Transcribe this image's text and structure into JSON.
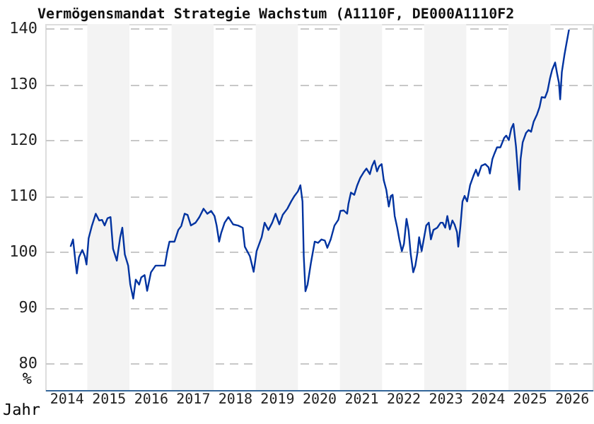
{
  "chart_data": {
    "type": "line",
    "title": "Vermögensmandat Strategie Wachstum (A1110F, DE000A1110F2",
    "xlabel": "Jahr",
    "ylabel": "%",
    "x": [
      2014.6,
      2014.66,
      2014.72,
      2014.75,
      2014.8,
      2014.88,
      2014.94,
      2014.98,
      2015.03,
      2015.11,
      2015.2,
      2015.28,
      2015.35,
      2015.41,
      2015.48,
      2015.55,
      2015.61,
      2015.7,
      2015.78,
      2015.83,
      2015.89,
      2015.97,
      2016.02,
      2016.09,
      2016.15,
      2016.23,
      2016.28,
      2016.36,
      2016.42,
      2016.51,
      2016.62,
      2016.73,
      2016.84,
      2016.9,
      2016.95,
      2017.07,
      2017.16,
      2017.23,
      2017.31,
      2017.38,
      2017.46,
      2017.57,
      2017.66,
      2017.76,
      2017.85,
      2017.94,
      2018.02,
      2018.07,
      2018.13,
      2018.18,
      2018.26,
      2018.35,
      2018.46,
      2018.58,
      2018.69,
      2018.74,
      2018.86,
      2018.95,
      2019.02,
      2019.14,
      2019.21,
      2019.3,
      2019.39,
      2019.47,
      2019.56,
      2019.64,
      2019.75,
      2019.84,
      2019.92,
      2020.0,
      2020.06,
      2020.11,
      2020.14,
      2020.18,
      2020.23,
      2020.31,
      2020.4,
      2020.48,
      2020.56,
      2020.64,
      2020.7,
      2020.78,
      2020.87,
      2020.96,
      2021.01,
      2021.09,
      2021.17,
      2021.2,
      2021.26,
      2021.34,
      2021.41,
      2021.48,
      2021.56,
      2021.63,
      2021.71,
      2021.76,
      2021.82,
      2021.88,
      2021.93,
      2021.99,
      2022.04,
      2022.1,
      2022.16,
      2022.21,
      2022.25,
      2022.3,
      2022.36,
      2022.41,
      2022.47,
      2022.52,
      2022.58,
      2022.63,
      2022.68,
      2022.74,
      2022.79,
      2022.84,
      2022.88,
      2022.94,
      2022.99,
      2023.05,
      2023.11,
      2023.16,
      2023.22,
      2023.31,
      2023.39,
      2023.44,
      2023.5,
      2023.55,
      2023.61,
      2023.67,
      2023.72,
      2023.78,
      2023.81,
      2023.86,
      2023.91,
      2023.96,
      2024.02,
      2024.09,
      2024.17,
      2024.23,
      2024.28,
      2024.36,
      2024.45,
      2024.53,
      2024.56,
      2024.62,
      2024.67,
      2024.73,
      2024.81,
      2024.9,
      2024.95,
      2025.01,
      2025.07,
      2025.12,
      2025.18,
      2025.23,
      2025.26,
      2025.29,
      2025.34,
      2025.42,
      2025.48,
      2025.54,
      2025.6,
      2025.68,
      2025.74,
      2025.79,
      2025.87,
      2025.93,
      2025.99,
      2026.04,
      2026.11,
      2026.16,
      2026.2,
      2026.23,
      2026.27,
      2026.33,
      2026.37,
      2026.44
    ],
    "series": [
      {
        "color": "#0033a0",
        "values": [
          100.9,
          102.2,
          98.0,
          96.1,
          99.0,
          100.3,
          99.2,
          97.7,
          102.4,
          104.7,
          106.8,
          105.6,
          105.7,
          104.7,
          106.0,
          106.2,
          100.5,
          98.4,
          102.6,
          104.3,
          99.5,
          97.5,
          94.1,
          91.6,
          95.0,
          94.1,
          95.4,
          95.8,
          93.0,
          96.3,
          97.5,
          97.5,
          97.5,
          100.1,
          101.8,
          101.8,
          103.9,
          104.6,
          106.8,
          106.6,
          104.7,
          105.2,
          106.2,
          107.7,
          106.8,
          107.3,
          106.4,
          104.7,
          101.8,
          103.4,
          105.2,
          106.2,
          104.9,
          104.7,
          104.3,
          100.9,
          99.2,
          96.4,
          100.1,
          102.6,
          105.2,
          103.9,
          105.2,
          106.8,
          104.9,
          106.6,
          107.7,
          109.0,
          110.0,
          110.8,
          111.9,
          109.0,
          99.2,
          92.9,
          94.1,
          98.0,
          101.8,
          101.6,
          102.2,
          102.0,
          100.7,
          102.2,
          104.7,
          105.7,
          107.3,
          107.4,
          106.8,
          108.5,
          110.6,
          110.2,
          111.9,
          113.2,
          114.2,
          114.9,
          113.9,
          115.3,
          116.3,
          114.4,
          115.3,
          115.7,
          112.8,
          111.1,
          108.1,
          110.0,
          110.2,
          106.4,
          104.3,
          102.2,
          100.1,
          101.4,
          105.9,
          103.8,
          99.6,
          96.3,
          97.5,
          99.8,
          102.6,
          100.1,
          102.2,
          104.7,
          105.2,
          102.2,
          103.9,
          104.3,
          105.2,
          105.2,
          104.3,
          106.4,
          104.0,
          105.6,
          104.9,
          103.5,
          100.9,
          104.5,
          109.0,
          110.0,
          109.0,
          111.9,
          113.6,
          114.7,
          113.6,
          115.4,
          115.7,
          115.1,
          114.0,
          116.6,
          117.6,
          118.7,
          118.7,
          120.4,
          120.8,
          120.0,
          122.1,
          122.9,
          118.9,
          114.0,
          111.1,
          116.6,
          119.6,
          121.3,
          121.8,
          121.5,
          123.3,
          124.6,
          125.9,
          127.7,
          127.6,
          128.8,
          131.1,
          132.6,
          133.9,
          131.8,
          130.3,
          127.3,
          132.2,
          135.2,
          136.9,
          139.8
        ]
      }
    ],
    "xlim": [
      2014,
      2027
    ],
    "xticks": [
      {
        "value": 2014.5,
        "label": "2014"
      },
      {
        "value": 2015.5,
        "label": "2015"
      },
      {
        "value": 2016.5,
        "label": "2016"
      },
      {
        "value": 2017.5,
        "label": "2017"
      },
      {
        "value": 2018.5,
        "label": "2018"
      },
      {
        "value": 2019.5,
        "label": "2019"
      },
      {
        "value": 2020.5,
        "label": "2020"
      },
      {
        "value": 2021.5,
        "label": "2021"
      },
      {
        "value": 2022.5,
        "label": "2022"
      },
      {
        "value": 2023.5,
        "label": "2023"
      },
      {
        "value": 2024.5,
        "label": "2024"
      },
      {
        "value": 2025.5,
        "label": "2025"
      },
      {
        "value": 2026.5,
        "label": "2026"
      }
    ],
    "ylim": [
      75.2,
      140.8
    ],
    "yticks": [
      80,
      90,
      100,
      110,
      120,
      130,
      140
    ],
    "grid": "y",
    "bands": [
      {
        "axis": "x",
        "from": 2015,
        "to": 2016,
        "color": "#f3f3f3"
      },
      {
        "axis": "x",
        "from": 2017,
        "to": 2018,
        "color": "#f3f3f3"
      },
      {
        "axis": "x",
        "from": 2019,
        "to": 2020,
        "color": "#f3f3f3"
      },
      {
        "axis": "x",
        "from": 2021,
        "to": 2022,
        "color": "#f3f3f3"
      },
      {
        "axis": "x",
        "from": 2023,
        "to": 2024,
        "color": "#f3f3f3"
      },
      {
        "axis": "x",
        "from": 2025,
        "to": 2026,
        "color": "#f3f3f3"
      }
    ]
  }
}
